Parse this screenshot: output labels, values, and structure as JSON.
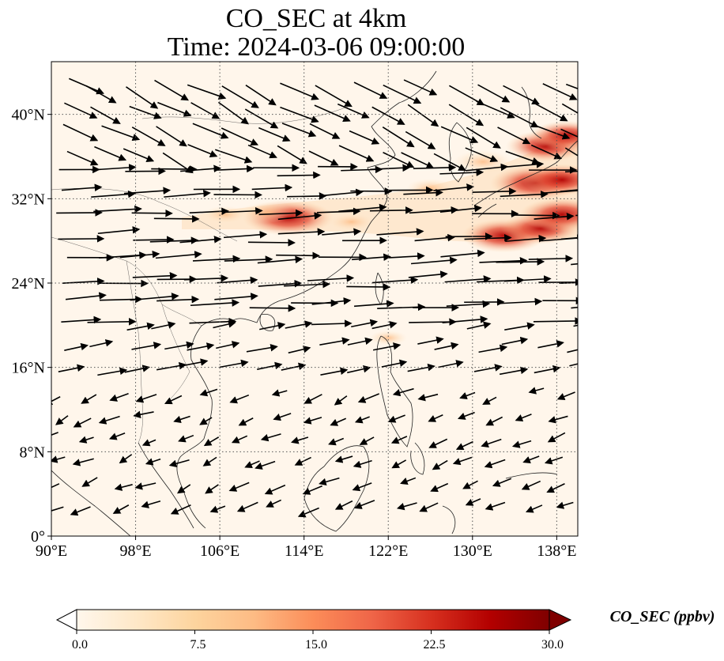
{
  "figure": {
    "title_line1": "CO_SEC at 4km",
    "title_line2": "Time: 2024-03-06 09:00:00"
  },
  "map": {
    "projection": "PlateCarree",
    "lon_range": [
      90,
      140
    ],
    "lat_range": [
      0,
      45
    ],
    "lon_ticks": [
      {
        "value": 90,
        "label": "90°E"
      },
      {
        "value": 98,
        "label": "98°E"
      },
      {
        "value": 106,
        "label": "106°E"
      },
      {
        "value": 114,
        "label": "114°E"
      },
      {
        "value": 122,
        "label": "122°E"
      },
      {
        "value": 130,
        "label": "130°E"
      },
      {
        "value": 138,
        "label": "138°E"
      }
    ],
    "lat_ticks": [
      {
        "value": 0,
        "label": "0°"
      },
      {
        "value": 8,
        "label": "8°N"
      },
      {
        "value": 16,
        "label": "16°N"
      },
      {
        "value": 24,
        "label": "24°N"
      },
      {
        "value": 32,
        "label": "32°N"
      },
      {
        "value": 40,
        "label": "40°N"
      }
    ],
    "gridlines": true,
    "background_color": "#fff6eb"
  },
  "colorbar": {
    "label": "CO_SEC (ppbv)",
    "min": 0,
    "max": 30,
    "extend": "both",
    "colormap": "OrRd",
    "ticks": [
      "0.0",
      "7.5",
      "15.0",
      "22.5",
      "30.0"
    ],
    "stops": [
      "#fff7ec",
      "#fee8c8",
      "#fdd49e",
      "#fdbb84",
      "#fc8d59",
      "#ef6548",
      "#d7301f",
      "#b30000",
      "#7f0000"
    ]
  },
  "concentration_plumes": [
    {
      "lon": 112.5,
      "lat": 30.2,
      "value": 26
    },
    {
      "lon": 110.5,
      "lat": 30.7,
      "value": 12
    },
    {
      "lon": 106.5,
      "lat": 30.5,
      "value": 8
    },
    {
      "lon": 118.5,
      "lat": 29.8,
      "value": 9
    },
    {
      "lon": 126.0,
      "lat": 33.0,
      "value": 10
    },
    {
      "lon": 133.0,
      "lat": 28.5,
      "value": 24
    },
    {
      "lon": 136.5,
      "lat": 29.2,
      "value": 22
    },
    {
      "lon": 138.5,
      "lat": 30.5,
      "value": 24
    },
    {
      "lon": 136.0,
      "lat": 33.5,
      "value": 26
    },
    {
      "lon": 138.5,
      "lat": 33.8,
      "value": 22
    },
    {
      "lon": 137.0,
      "lat": 37.0,
      "value": 22
    },
    {
      "lon": 139.0,
      "lat": 38.0,
      "value": 20
    },
    {
      "lon": 131.0,
      "lat": 35.5,
      "value": 14
    },
    {
      "lon": 122.0,
      "lat": 18.8,
      "value": 6
    }
  ],
  "wind_summary": "westerly jet north of 20°N, weak easterlies south of 16°N"
}
